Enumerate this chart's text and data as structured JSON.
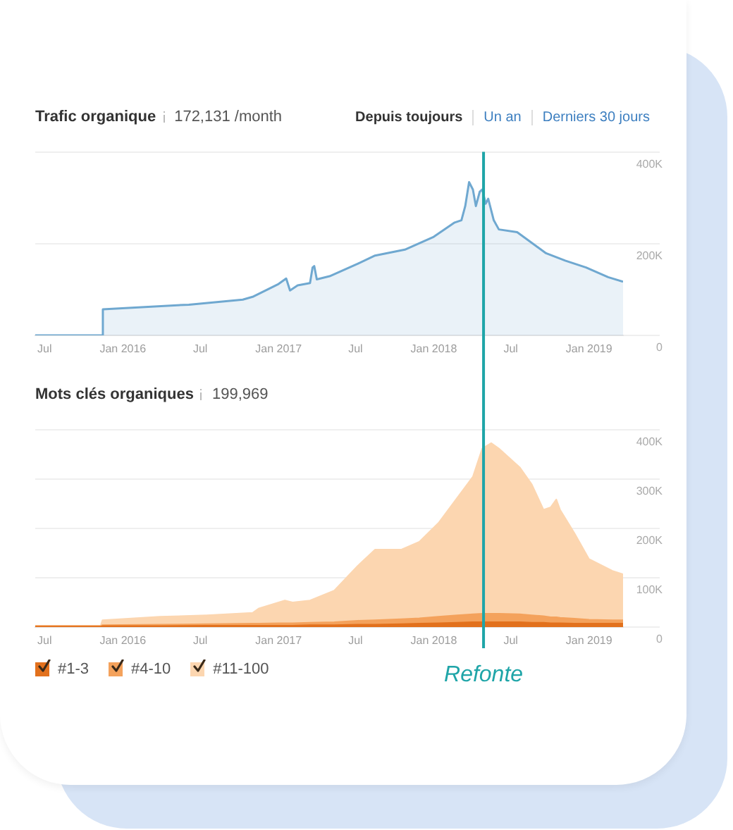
{
  "chart_data": [
    {
      "type": "area",
      "title": "Trafic organique",
      "subtitle": "172,131 /month",
      "annotations": [
        "Depuis toujours",
        "Un an",
        "Derniers 30 jours"
      ],
      "x": [
        "2015-06-09",
        "2015-11-13",
        "2015-11-15",
        "2016-06-04",
        "2016-10-09",
        "2016-11-01",
        "2017-01-01",
        "2017-01-19",
        "2017-01-28",
        "2017-02-15",
        "2017-03-16",
        "2017-03-22",
        "2017-03-26",
        "2017-04-01",
        "2017-05-01",
        "2017-07-06",
        "2017-08-16",
        "2017-10-25",
        "2018-01-01",
        "2018-02-19",
        "2018-03-07",
        "2018-03-16",
        "2018-03-25",
        "2018-04-03",
        "2018-04-10",
        "2018-04-19",
        "2018-04-25",
        "2018-05-03",
        "2018-05-09",
        "2018-05-22",
        "2018-06-03",
        "2018-07-16",
        "2018-09-22",
        "2018-11-06",
        "2018-12-25",
        "2019-02-15",
        "2019-03-22"
      ],
      "values": [
        0,
        0,
        57000,
        67000,
        78000,
        84000,
        112000,
        124000,
        98000,
        109000,
        114000,
        148000,
        151000,
        122000,
        129000,
        156000,
        174000,
        187000,
        215000,
        246000,
        251000,
        282000,
        334000,
        318000,
        282000,
        313000,
        318000,
        287000,
        298000,
        251000,
        231000,
        225000,
        179000,
        163000,
        148000,
        127000,
        117000
      ],
      "color": "#6fa8d0",
      "xlim": [
        "2015-06-09",
        "2019-03-22"
      ],
      "xticks": [
        {
          "value": "2015-07-01",
          "label": "Jul"
        },
        {
          "value": "2016-01-01",
          "label": "Jan 2016"
        },
        {
          "value": "2016-07-01",
          "label": "Jul"
        },
        {
          "value": "2017-01-01",
          "label": "Jan 2017"
        },
        {
          "value": "2017-07-01",
          "label": "Jul"
        },
        {
          "value": "2018-01-01",
          "label": "Jan 2018"
        },
        {
          "value": "2018-07-01",
          "label": "Jul"
        },
        {
          "value": "2019-01-01",
          "label": "Jan 2019"
        }
      ],
      "ylim": [
        0,
        400000
      ],
      "yticks": [
        {
          "value": 0,
          "label": "0"
        },
        {
          "value": 200000,
          "label": "200K"
        },
        {
          "value": 400000,
          "label": "400K"
        }
      ],
      "grid": "y",
      "ref_lines": [
        {
          "axis": "x",
          "value": "2018-04-28",
          "color": "#1fa5a8"
        }
      ]
    },
    {
      "type": "area",
      "stacked": true,
      "title": "Mots clés organiques",
      "subtitle": "199,969",
      "x": [
        "2015-06-09",
        "2015-11-10",
        "2015-11-14",
        "2016-03-28",
        "2016-07-16",
        "2016-11-01",
        "2016-11-16",
        "2017-01-01",
        "2017-01-16",
        "2017-02-03",
        "2017-03-16",
        "2017-05-12",
        "2017-07-06",
        "2017-08-16",
        "2017-10-16",
        "2017-11-28",
        "2018-01-12",
        "2018-02-25",
        "2018-04-03",
        "2018-04-25",
        "2018-05-16",
        "2018-06-03",
        "2018-07-22",
        "2018-08-19",
        "2018-09-16",
        "2018-10-03",
        "2018-10-16",
        "2018-10-25",
        "2018-11-28",
        "2019-01-01",
        "2019-02-25",
        "2019-03-22"
      ],
      "series": [
        {
          "name": "#1-3",
          "color": "#e2711d",
          "values": [
            1000,
            1000,
            2000,
            2000,
            3000,
            3000,
            3000,
            3000,
            3000,
            3000,
            4000,
            4000,
            5000,
            5000,
            6000,
            7000,
            8000,
            9000,
            10000,
            10000,
            10000,
            10000,
            10000,
            9000,
            9000,
            8000,
            8000,
            8000,
            7000,
            7000,
            7000,
            7000
          ]
        },
        {
          "name": "#4-10",
          "color": "#f4a25c",
          "values": [
            1000,
            1000,
            2000,
            3000,
            3000,
            4000,
            4000,
            5000,
            5000,
            5000,
            5000,
            6000,
            8000,
            9000,
            10000,
            11000,
            13000,
            15000,
            16000,
            17000,
            17000,
            17000,
            16000,
            15000,
            13000,
            12000,
            12000,
            11000,
            10000,
            8000,
            7000,
            7000
          ]
        },
        {
          "name": "#11-100",
          "color": "#fcd6b0",
          "values": [
            1000,
            1000,
            10000,
            16000,
            18000,
            22000,
            31000,
            42000,
            46000,
            42000,
            45000,
            64000,
            111000,
            143000,
            141000,
            155000,
            190000,
            238000,
            279000,
            335000,
            346000,
            335000,
            298000,
            266000,
            216000,
            223000,
            239000,
            219000,
            173000,
            123000,
            100000,
            93000
          ]
        }
      ],
      "xlim": [
        "2015-06-09",
        "2019-03-22"
      ],
      "xticks": [
        {
          "value": "2015-07-01",
          "label": "Jul"
        },
        {
          "value": "2016-01-01",
          "label": "Jan 2016"
        },
        {
          "value": "2016-07-01",
          "label": "Jul"
        },
        {
          "value": "2017-01-01",
          "label": "Jan 2017"
        },
        {
          "value": "2017-07-01",
          "label": "Jul"
        },
        {
          "value": "2018-01-01",
          "label": "Jan 2018"
        },
        {
          "value": "2018-07-01",
          "label": "Jul"
        },
        {
          "value": "2019-01-01",
          "label": "Jan 2019"
        }
      ],
      "ylim": [
        0,
        400000
      ],
      "yticks": [
        {
          "value": 0,
          "label": "0"
        },
        {
          "value": 100000,
          "label": "100K"
        },
        {
          "value": 200000,
          "label": "200K"
        },
        {
          "value": 300000,
          "label": "300K"
        },
        {
          "value": 400000,
          "label": "400K"
        }
      ],
      "grid": "y",
      "legend": "bottom left",
      "ref_lines": [
        {
          "axis": "x",
          "value": "2018-04-28",
          "label": "Refonte",
          "color": "#1fa5a8"
        }
      ]
    }
  ]
}
